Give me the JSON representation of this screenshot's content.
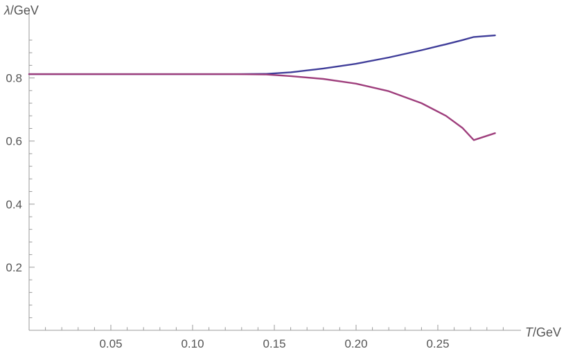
{
  "chart_data": {
    "type": "line",
    "title": "",
    "xlabel": {
      "symbol": "T",
      "unit": "/GeV"
    },
    "ylabel": {
      "symbol": "λ",
      "unit": "/GeV"
    },
    "xlim": [
      0.0,
      0.29
    ],
    "ylim": [
      0.0,
      0.94
    ],
    "x_ticks": [
      {
        "value": 0.05,
        "label": "0.05"
      },
      {
        "value": 0.1,
        "label": "0.10"
      },
      {
        "value": 0.15,
        "label": "0.15"
      },
      {
        "value": 0.2,
        "label": "0.20"
      },
      {
        "value": 0.25,
        "label": "0.25"
      }
    ],
    "y_ticks": [
      {
        "value": 0.2,
        "label": "0.2"
      },
      {
        "value": 0.4,
        "label": "0.4"
      },
      {
        "value": 0.6,
        "label": "0.6"
      },
      {
        "value": 0.8,
        "label": "0.8"
      }
    ],
    "grid": false,
    "legend": "none",
    "series": [
      {
        "color": "#3f3d99",
        "x": [
          0.0,
          0.05,
          0.1,
          0.125,
          0.145,
          0.16,
          0.18,
          0.2,
          0.22,
          0.24,
          0.255,
          0.265,
          0.272,
          0.285
        ],
        "y": [
          0.812,
          0.812,
          0.812,
          0.812,
          0.813,
          0.818,
          0.83,
          0.845,
          0.865,
          0.888,
          0.907,
          0.92,
          0.93,
          0.935
        ]
      },
      {
        "color": "#9e3e7c",
        "x": [
          0.0,
          0.05,
          0.1,
          0.125,
          0.145,
          0.16,
          0.18,
          0.2,
          0.22,
          0.24,
          0.255,
          0.265,
          0.272,
          0.285
        ],
        "y": [
          0.812,
          0.812,
          0.812,
          0.812,
          0.811,
          0.806,
          0.797,
          0.782,
          0.758,
          0.72,
          0.68,
          0.642,
          0.603,
          0.625
        ]
      }
    ]
  }
}
